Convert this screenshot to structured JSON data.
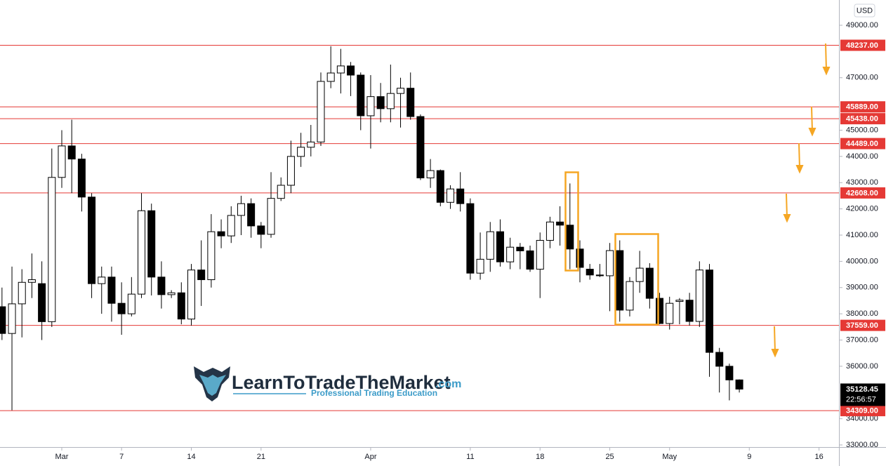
{
  "chart_data": {
    "type": "candlestick",
    "unit": "USD",
    "x": [
      -6,
      -5,
      -4,
      -3,
      -2,
      -1,
      0,
      1,
      2,
      3,
      4,
      5,
      6,
      7,
      8,
      9,
      10,
      11,
      12,
      13,
      14,
      15,
      16,
      17,
      18,
      19,
      20,
      21,
      22,
      23,
      24,
      25,
      26,
      27,
      28,
      29,
      30,
      31,
      32,
      33,
      34,
      35,
      36,
      37,
      38,
      39,
      40,
      41,
      42,
      43,
      44,
      45,
      46,
      47,
      48,
      49,
      50,
      51,
      52,
      53,
      54,
      55,
      56,
      57,
      58,
      59,
      60,
      61,
      62,
      63,
      64,
      65,
      66,
      67,
      68
    ],
    "open": [
      38270,
      37250,
      38380,
      39200,
      39150,
      37700,
      43200,
      44400,
      43900,
      42450,
      39150,
      39400,
      38400,
      38000,
      38750,
      41930,
      39400,
      38730,
      38800,
      37800,
      39670,
      39300,
      41130,
      40970,
      41750,
      42200,
      41350,
      41030,
      42400,
      42900,
      44000,
      44350,
      44550,
      46860,
      47180,
      47450,
      47100,
      45550,
      46280,
      45820,
      46400,
      46600,
      45520,
      43180,
      43460,
      42250,
      42760,
      42200,
      39550,
      40080,
      41130,
      39980,
      40540,
      40400,
      39700,
      40800,
      41500,
      41380,
      40470,
      39700,
      39480,
      39450,
      40410,
      38140,
      39230,
      39740,
      38590,
      37630,
      38470,
      38520,
      37710,
      39670,
      36530,
      36000,
      35480
    ],
    "high": [
      39000,
      39800,
      39700,
      40300,
      40000,
      44300,
      45000,
      45400,
      44100,
      42600,
      39800,
      39800,
      39200,
      39400,
      42600,
      42200,
      40000,
      38900,
      39200,
      39900,
      40800,
      41800,
      41600,
      42100,
      42500,
      42400,
      41500,
      43400,
      43200,
      44600,
      44900,
      45200,
      47200,
      48200,
      48100,
      47600,
      47200,
      47100,
      46800,
      47500,
      47000,
      47200,
      45600,
      43900,
      43500,
      42900,
      43400,
      42400,
      41100,
      41500,
      41600,
      40900,
      40700,
      40600,
      41100,
      41700,
      42100,
      42970,
      40800,
      39900,
      39900,
      40700,
      40800,
      39400,
      40400,
      39930,
      38800,
      38650,
      38600,
      38800,
      40000,
      39900,
      36700,
      36100,
      35500
    ],
    "low": [
      37000,
      34320,
      37100,
      38600,
      37000,
      37500,
      42800,
      42600,
      41900,
      38600,
      38000,
      37700,
      37200,
      37900,
      38600,
      38700,
      38200,
      38600,
      37600,
      37550,
      38300,
      39000,
      40500,
      40700,
      41000,
      40900,
      40500,
      40900,
      42300,
      42600,
      43600,
      44000,
      44400,
      46600,
      46400,
      46300,
      45000,
      44300,
      45300,
      45300,
      45100,
      45400,
      43100,
      42800,
      42100,
      42000,
      41900,
      39300,
      39300,
      39600,
      39800,
      39700,
      39700,
      39600,
      38600,
      40500,
      40600,
      39700,
      39200,
      39300,
      39400,
      38100,
      37700,
      37900,
      38800,
      38200,
      37600,
      37400,
      37600,
      37550,
      37500,
      35600,
      35000,
      34700,
      35000
    ],
    "close": [
      37250,
      38380,
      39200,
      39300,
      37700,
      43200,
      44400,
      43900,
      42450,
      39150,
      39400,
      38400,
      38000,
      38750,
      41930,
      39400,
      38730,
      38800,
      37800,
      39670,
      39300,
      41130,
      40970,
      41750,
      42200,
      41350,
      41030,
      42400,
      42900,
      44000,
      44350,
      44550,
      46860,
      47180,
      47450,
      47100,
      45550,
      46280,
      45820,
      46400,
      46600,
      45520,
      43180,
      43460,
      42250,
      42760,
      42200,
      39550,
      40080,
      41130,
      39980,
      40540,
      40400,
      39700,
      40800,
      41500,
      41380,
      40470,
      39770,
      39480,
      39450,
      40410,
      38140,
      39230,
      39740,
      38590,
      37630,
      38400,
      38520,
      37710,
      39670,
      36530,
      36000,
      35480,
      35128.45
    ],
    "xlim": [
      -6.2,
      78
    ],
    "xticks": [
      {
        "value": 0,
        "label": "Mar"
      },
      {
        "value": 6,
        "label": "7"
      },
      {
        "value": 13,
        "label": "14"
      },
      {
        "value": 20,
        "label": "21"
      },
      {
        "value": 31,
        "label": "Apr"
      },
      {
        "value": 41,
        "label": "11"
      },
      {
        "value": 48,
        "label": "18"
      },
      {
        "value": 55,
        "label": "25"
      },
      {
        "value": 61,
        "label": "May"
      },
      {
        "value": 69,
        "label": "9"
      },
      {
        "value": 76,
        "label": "16"
      }
    ],
    "ylim": [
      32920,
      49963
    ],
    "yticks": [
      {
        "value": 49000,
        "label": "49000.00"
      },
      {
        "value": 47000,
        "label": "47000.00"
      },
      {
        "value": 45000,
        "label": "45000.00"
      },
      {
        "value": 44000,
        "label": "44000.00"
      },
      {
        "value": 43000,
        "label": "43000.00"
      },
      {
        "value": 42000,
        "label": "42000.00"
      },
      {
        "value": 41000,
        "label": "41000.00"
      },
      {
        "value": 40000,
        "label": "40000.00"
      },
      {
        "value": 39000,
        "label": "39000.00"
      },
      {
        "value": 38000,
        "label": "38000.00"
      },
      {
        "value": 37000,
        "label": "37000.00"
      },
      {
        "value": 36000,
        "label": "36000.00"
      },
      {
        "value": 34000,
        "label": "34000.00"
      },
      {
        "value": 33000,
        "label": "33000.00"
      }
    ],
    "levels": [
      {
        "value": 48237,
        "label": "48237.00"
      },
      {
        "value": 45889,
        "label": "45889.00"
      },
      {
        "value": 45438,
        "label": "45438.00"
      },
      {
        "value": 44489,
        "label": "44489.00"
      },
      {
        "value": 42608,
        "label": "42608.00"
      },
      {
        "value": 37559,
        "label": "37559.00"
      },
      {
        "value": 34309,
        "label": "34309.00"
      }
    ],
    "level_color": "#e53935",
    "up_color": "#ffffff",
    "down_color": "#000000",
    "countdown": "22:56:57",
    "logo": {
      "name": "LearnToTradeTheMarket",
      "suffix": ".com",
      "tagline": "Professional Trading Education"
    }
  }
}
